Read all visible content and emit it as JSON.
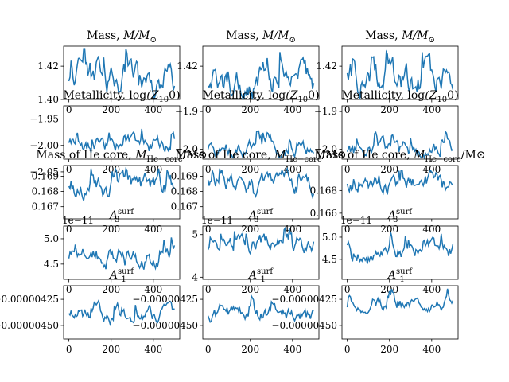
{
  "chart_data": [
    {
      "type": "line",
      "title": "Mass, $M/M_\\odot$",
      "title_main": "Mass, ",
      "title_math": "M/M",
      "title_sub": "⊙",
      "ylim": [
        1.4,
        1.432
      ],
      "xlim": [
        -25,
        525
      ],
      "yticks": [
        {
          "v": 1.4,
          "label": "1.40"
        },
        {
          "v": 1.42,
          "label": "1.42"
        }
      ],
      "xticks": [
        {
          "v": 0,
          "label": "0"
        },
        {
          "v": 200,
          "label": "200"
        },
        {
          "v": 400,
          "label": "400"
        }
      ],
      "offset_text": "",
      "gen": {
        "base": 1.412,
        "amp": 0.009,
        "seed": 1,
        "min": 1.4005,
        "max": 1.4305
      }
    },
    {
      "type": "line",
      "title": "Mass, $M/M_\\odot$",
      "title_main": "Mass, ",
      "title_math": "M/M",
      "title_sub": "⊙",
      "ylim": [
        1.4,
        1.432
      ],
      "xlim": [
        -25,
        525
      ],
      "yticks": [
        {
          "v": 1.42,
          "label": "1.42"
        }
      ],
      "xticks": [
        {
          "v": 0,
          "label": "0"
        },
        {
          "v": 200,
          "label": "200"
        },
        {
          "v": 400,
          "label": "400"
        }
      ],
      "offset_text": "",
      "gen": {
        "base": 1.412,
        "amp": 0.009,
        "seed": 2,
        "min": 1.4005,
        "max": 1.4305
      }
    },
    {
      "type": "line",
      "title": "Mass, $M/M_\\odot$",
      "title_main": "Mass, ",
      "title_math": "M/M",
      "title_sub": "⊙",
      "ylim": [
        1.4,
        1.432
      ],
      "xlim": [
        -25,
        525
      ],
      "yticks": [
        {
          "v": 1.42,
          "label": "1.42"
        }
      ],
      "xticks": [
        {
          "v": 0,
          "label": "0"
        },
        {
          "v": 200,
          "label": "200"
        },
        {
          "v": 400,
          "label": "400"
        }
      ],
      "offset_text": "",
      "gen": {
        "base": 1.41,
        "amp": 0.009,
        "seed": 3,
        "min": 1.4005,
        "max": 1.4305
      }
    },
    {
      "type": "line",
      "title": "Metallicity, $\\log_{10}(Z_0)$",
      "title_main": "Metallicity, log",
      "title_math": "(Z",
      "title_sub": "10",
      "title_tail": "0)",
      "ylim": [
        -2.026,
        -1.925
      ],
      "xlim": [
        -25,
        525
      ],
      "yticks": [
        {
          "v": -1.95,
          "label": "−1.95"
        },
        {
          "v": -2.0,
          "label": "−2.00"
        },
        {
          "v": -2.05,
          "label": "−2.05"
        }
      ],
      "xticks": [
        {
          "v": 0,
          "label": "0"
        },
        {
          "v": 200,
          "label": "200"
        },
        {
          "v": 400,
          "label": "400"
        }
      ],
      "offset_text": "",
      "gen": {
        "base": -2.0,
        "amp": 0.015,
        "seed": 4,
        "min": -2.022,
        "max": -1.935
      }
    },
    {
      "type": "line",
      "title": "Metallicity, $\\log_{10}(Z_0)$",
      "title_main": "Metallicity, log",
      "title_math": "(Z",
      "title_sub": "10",
      "title_tail": "0)",
      "ylim": [
        -2.026,
        -1.885
      ],
      "xlim": [
        -25,
        525
      ],
      "yticks": [
        {
          "v": -1.9,
          "label": "−1.9"
        },
        {
          "v": -2.0,
          "label": "−2.0"
        }
      ],
      "xticks": [
        {
          "v": 0,
          "label": "0"
        },
        {
          "v": 200,
          "label": "200"
        },
        {
          "v": 400,
          "label": "400"
        }
      ],
      "offset_text": "",
      "gen": {
        "base": -2.0,
        "amp": 0.02,
        "seed": 5,
        "min": -2.022,
        "max": -1.895
      }
    },
    {
      "type": "line",
      "title": "Metallicity, $\\log_{10}(Z_0)$",
      "title_main": "Metallicity, log",
      "title_math": "(Z",
      "title_sub": "10",
      "title_tail": "0)",
      "ylim": [
        -2.026,
        -1.885
      ],
      "xlim": [
        -25,
        525
      ],
      "yticks": [
        {
          "v": -1.9,
          "label": "−1.9"
        },
        {
          "v": -2.0,
          "label": "−2.0"
        }
      ],
      "xticks": [
        {
          "v": 0,
          "label": "0"
        },
        {
          "v": 200,
          "label": "200"
        },
        {
          "v": 400,
          "label": "400"
        }
      ],
      "offset_text": "",
      "gen": {
        "base": -2.0,
        "amp": 0.02,
        "seed": 6,
        "min": -2.022,
        "max": -1.895
      }
    },
    {
      "type": "line",
      "title": "Mass of He core, $M_{He-core}/M_\\odot$",
      "title_main": "Mass of He core, ",
      "title_math": "M",
      "title_sub": "He−core",
      "title_tail": "/M⊙",
      "ylim": [
        0.1662,
        0.1697
      ],
      "xlim": [
        -25,
        525
      ],
      "yticks": [
        {
          "v": 0.169,
          "label": "0.169"
        },
        {
          "v": 0.168,
          "label": "0.168"
        },
        {
          "v": 0.167,
          "label": "0.167"
        }
      ],
      "xticks": [
        {
          "v": 0,
          "label": "0"
        },
        {
          "v": 200,
          "label": "200"
        },
        {
          "v": 400,
          "label": "400"
        }
      ],
      "offset_text": "",
      "gen": {
        "base": 0.1682,
        "amp": 0.0007,
        "seed": 7,
        "min": 0.1665,
        "max": 0.1695
      }
    },
    {
      "type": "line",
      "title": "Mass of He core, $M_{He-core}/M_\\odot$",
      "title_main": "Mass of He core, ",
      "title_math": "M",
      "title_sub": "He−core",
      "title_tail": "/M⊙",
      "ylim": [
        0.1662,
        0.1697
      ],
      "xlim": [
        -25,
        525
      ],
      "yticks": [
        {
          "v": 0.169,
          "label": "0.169"
        },
        {
          "v": 0.168,
          "label": "0.168"
        },
        {
          "v": 0.167,
          "label": "0.167"
        }
      ],
      "xticks": [
        {
          "v": 0,
          "label": "0"
        },
        {
          "v": 200,
          "label": "200"
        },
        {
          "v": 400,
          "label": "400"
        }
      ],
      "offset_text": "",
      "gen": {
        "base": 0.1685,
        "amp": 0.0006,
        "seed": 8,
        "min": 0.1665,
        "max": 0.1695
      }
    },
    {
      "type": "line",
      "title": "Mass of He core, $M_{He-core}/M_\\odot$",
      "title_main": "Mass of He core, ",
      "title_math": "M",
      "title_sub": "He−core",
      "title_tail": "/M⊙",
      "ylim": [
        0.1655,
        0.1702
      ],
      "xlim": [
        -25,
        525
      ],
      "yticks": [
        {
          "v": 0.168,
          "label": "0.168"
        },
        {
          "v": 0.166,
          "label": "0.166"
        }
      ],
      "xticks": [
        {
          "v": 0,
          "label": "0"
        },
        {
          "v": 200,
          "label": "200"
        },
        {
          "v": 400,
          "label": "400"
        }
      ],
      "offset_text": "",
      "gen": {
        "base": 0.1685,
        "amp": 0.0008,
        "seed": 9,
        "min": 0.166,
        "max": 0.1698
      }
    },
    {
      "type": "line",
      "title": "$A_3^{\\rm surf}$",
      "title_main": "",
      "title_math": "A",
      "title_sub": "3",
      "title_sup": "surf",
      "ylim": [
        4.2,
        5.25
      ],
      "xlim": [
        -25,
        525
      ],
      "yticks": [
        {
          "v": 5.0,
          "label": "5.0"
        },
        {
          "v": 4.5,
          "label": "4.5"
        }
      ],
      "xticks": [
        {
          "v": 0,
          "label": "0"
        },
        {
          "v": 200,
          "label": "200"
        },
        {
          "v": 400,
          "label": "400"
        }
      ],
      "offset_text": "1e−11",
      "gen": {
        "base": 4.65,
        "amp": 0.18,
        "seed": 10,
        "min": 4.22,
        "max": 5.2
      }
    },
    {
      "type": "line",
      "title": "$A_3^{\\rm surf}$",
      "title_main": "",
      "title_math": "A",
      "title_sub": "3",
      "title_sup": "surf",
      "ylim": [
        3.95,
        5.2
      ],
      "xlim": [
        -25,
        525
      ],
      "yticks": [
        {
          "v": 5,
          "label": "5"
        },
        {
          "v": 4,
          "label": "4"
        }
      ],
      "xticks": [
        {
          "v": 0,
          "label": "0"
        },
        {
          "v": 200,
          "label": "200"
        },
        {
          "v": 400,
          "label": "400"
        }
      ],
      "offset_text": "1e−11",
      "gen": {
        "base": 4.75,
        "amp": 0.2,
        "seed": 11,
        "min": 4.0,
        "max": 5.15
      }
    },
    {
      "type": "line",
      "title": "$A_3^{\\rm surf}$",
      "title_main": "",
      "title_math": "A",
      "title_sub": "3",
      "title_sup": "surf",
      "ylim": [
        4.05,
        5.25
      ],
      "xlim": [
        -25,
        525
      ],
      "yticks": [
        {
          "v": 5.0,
          "label": "5.0"
        },
        {
          "v": 4.5,
          "label": "4.5"
        }
      ],
      "xticks": [
        {
          "v": 0,
          "label": "0"
        },
        {
          "v": 200,
          "label": "200"
        },
        {
          "v": 400,
          "label": "400"
        }
      ],
      "offset_text": "1e−11",
      "gen": {
        "base": 4.7,
        "amp": 0.18,
        "seed": 12,
        "min": 4.1,
        "max": 5.15
      }
    },
    {
      "type": "line",
      "title": "$A_{-1}^{\\rm surf}$",
      "title_main": "",
      "title_math": "A",
      "title_sub": "−1",
      "title_sup": "surf",
      "ylim": [
        -4.63e-06,
        -4.12e-06
      ],
      "xlim": [
        -25,
        525
      ],
      "yticks": [
        {
          "v": -4.25e-06,
          "label": "−0.00000425"
        },
        {
          "v": -4.5e-06,
          "label": "−0.00000450"
        }
      ],
      "xticks": [
        {
          "v": 0,
          "label": "0"
        },
        {
          "v": 200,
          "label": "200"
        },
        {
          "v": 400,
          "label": "400"
        }
      ],
      "offset_text": "",
      "gen": {
        "base": -4.4e-06,
        "amp": 7e-08,
        "seed": 13,
        "min": -4.6e-06,
        "max": -4.15e-06
      }
    },
    {
      "type": "line",
      "title": "$A_{-1}^{\\rm surf}$",
      "title_main": "",
      "title_math": "A",
      "title_sub": "−1",
      "title_sup": "surf",
      "ylim": [
        -4.63e-06,
        -4.12e-06
      ],
      "xlim": [
        -25,
        525
      ],
      "yticks": [
        {
          "v": -4.25e-06,
          "label": "−0.00000425"
        },
        {
          "v": -4.5e-06,
          "label": "−0.00000450"
        }
      ],
      "xticks": [
        {
          "v": 0,
          "label": "0"
        },
        {
          "v": 200,
          "label": "200"
        },
        {
          "v": 400,
          "label": "400"
        }
      ],
      "offset_text": "",
      "gen": {
        "base": -4.4e-06,
        "amp": 7e-08,
        "seed": 14,
        "min": -4.6e-06,
        "max": -4.15e-06
      }
    },
    {
      "type": "line",
      "title": "$A_{-1}^{\\rm surf}$",
      "title_main": "",
      "title_math": "A",
      "title_sub": "−1",
      "title_sup": "surf",
      "ylim": [
        -4.63e-06,
        -4.12e-06
      ],
      "xlim": [
        -25,
        525
      ],
      "yticks": [
        {
          "v": -4.25e-06,
          "label": "−0.00000425"
        },
        {
          "v": -4.5e-06,
          "label": "−0.00000450"
        }
      ],
      "xticks": [
        {
          "v": 0,
          "label": "0"
        },
        {
          "v": 200,
          "label": "200"
        },
        {
          "v": 400,
          "label": "400"
        }
      ],
      "offset_text": "",
      "gen": {
        "base": -4.3e-06,
        "amp": 6e-08,
        "seed": 15,
        "min": -4.6e-06,
        "max": -4.15e-06
      }
    }
  ],
  "colors": {
    "line": "#1f77b4",
    "axes": "#000000",
    "background": "#ffffff"
  }
}
